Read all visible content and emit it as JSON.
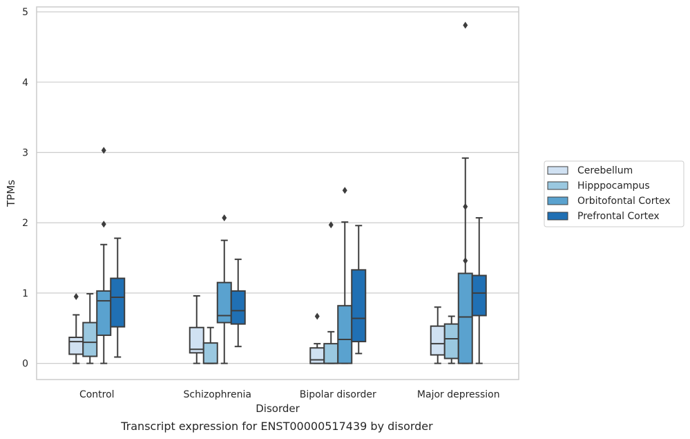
{
  "chart_data": {
    "type": "boxplot",
    "caption": "Transcript expression for ENST00000517439 by disorder",
    "xlabel": "Disorder",
    "ylabel": "TPMs",
    "ylim": [
      -0.23,
      5.07
    ],
    "yticks": [
      0,
      1,
      2,
      3,
      4,
      5
    ],
    "grid": true,
    "legend_position": "right",
    "categories": [
      "Control",
      "Schizophrenia",
      "Bipolar disorder",
      "Major depression"
    ],
    "series": [
      {
        "name": "Cerebellum",
        "color": "#d0e1f2",
        "boxes": [
          {
            "whislo": 0.0,
            "q1": 0.13,
            "med": 0.31,
            "q3": 0.37,
            "whishi": 0.69,
            "fliers": [
              0.95
            ]
          },
          {
            "whislo": 0.0,
            "q1": 0.15,
            "med": 0.2,
            "q3": 0.51,
            "whishi": 0.96,
            "fliers": []
          },
          {
            "whislo": 0.0,
            "q1": 0.0,
            "med": 0.05,
            "q3": 0.22,
            "whishi": 0.28,
            "fliers": [
              0.67
            ]
          },
          {
            "whislo": 0.0,
            "q1": 0.12,
            "med": 0.28,
            "q3": 0.53,
            "whishi": 0.8,
            "fliers": []
          }
        ]
      },
      {
        "name": "Hipppocampus",
        "color": "#9ac8e0",
        "boxes": [
          {
            "whislo": 0.0,
            "q1": 0.1,
            "med": 0.3,
            "q3": 0.58,
            "whishi": 0.99,
            "fliers": []
          },
          {
            "whislo": 0.0,
            "q1": 0.0,
            "med": 0.0,
            "q3": 0.29,
            "whishi": 0.51,
            "fliers": []
          },
          {
            "whislo": 0.0,
            "q1": 0.0,
            "med": 0.0,
            "q3": 0.28,
            "whishi": 0.45,
            "fliers": [
              1.97
            ]
          },
          {
            "whislo": 0.0,
            "q1": 0.07,
            "med": 0.35,
            "q3": 0.56,
            "whishi": 0.67,
            "fliers": []
          }
        ]
      },
      {
        "name": "Orbitofontal Cortex",
        "color": "#5aa2cf",
        "boxes": [
          {
            "whislo": 0.0,
            "q1": 0.4,
            "med": 0.89,
            "q3": 1.03,
            "whishi": 1.69,
            "fliers": [
              1.98,
              3.03
            ]
          },
          {
            "whislo": 0.0,
            "q1": 0.58,
            "med": 0.68,
            "q3": 1.15,
            "whishi": 1.75,
            "fliers": [
              2.07
            ]
          },
          {
            "whislo": 0.0,
            "q1": 0.0,
            "med": 0.34,
            "q3": 0.82,
            "whishi": 2.01,
            "fliers": [
              2.46
            ]
          },
          {
            "whislo": 0.0,
            "q1": 0.0,
            "med": 0.66,
            "q3": 1.28,
            "whishi": 2.92,
            "fliers": [
              1.46,
              2.23,
              4.81
            ]
          }
        ]
      },
      {
        "name": "Prefrontal Cortex",
        "color": "#2070b4",
        "boxes": [
          {
            "whislo": 0.09,
            "q1": 0.52,
            "med": 0.94,
            "q3": 1.21,
            "whishi": 1.78,
            "fliers": []
          },
          {
            "whislo": 0.24,
            "q1": 0.56,
            "med": 0.75,
            "q3": 1.03,
            "whishi": 1.48,
            "fliers": []
          },
          {
            "whislo": 0.14,
            "q1": 0.31,
            "med": 0.64,
            "q3": 1.33,
            "whishi": 1.96,
            "fliers": []
          },
          {
            "whislo": 0.0,
            "q1": 0.68,
            "med": 1.0,
            "q3": 1.25,
            "whishi": 2.07,
            "fliers": []
          }
        ]
      }
    ]
  }
}
